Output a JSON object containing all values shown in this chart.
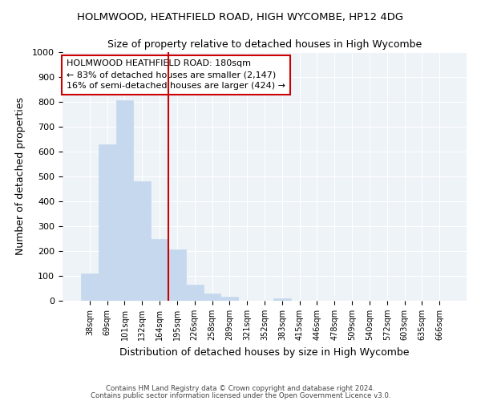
{
  "title1": "HOLMWOOD, HEATHFIELD ROAD, HIGH WYCOMBE, HP12 4DG",
  "title2": "Size of property relative to detached houses in High Wycombe",
  "xlabel": "Distribution of detached houses by size in High Wycombe",
  "ylabel": "Number of detached properties",
  "categories": [
    "38sqm",
    "69sqm",
    "101sqm",
    "132sqm",
    "164sqm",
    "195sqm",
    "226sqm",
    "258sqm",
    "289sqm",
    "321sqm",
    "352sqm",
    "383sqm",
    "415sqm",
    "446sqm",
    "478sqm",
    "509sqm",
    "540sqm",
    "572sqm",
    "603sqm",
    "635sqm",
    "666sqm"
  ],
  "values": [
    110,
    630,
    805,
    480,
    250,
    205,
    65,
    28,
    15,
    0,
    0,
    10,
    0,
    0,
    0,
    0,
    0,
    0,
    0,
    0,
    0
  ],
  "bar_color": "#c5d8ed",
  "bar_edge_color": "#c5d8ed",
  "vline_color": "#cc0000",
  "annotation_text": "HOLMWOOD HEATHFIELD ROAD: 180sqm\n← 83% of detached houses are smaller (2,147)\n16% of semi-detached houses are larger (424) →",
  "annotation_box_color": "#ffffff",
  "annotation_box_edge": "#cc0000",
  "ylim": [
    0,
    1000
  ],
  "yticks": [
    0,
    100,
    200,
    300,
    400,
    500,
    600,
    700,
    800,
    900,
    1000
  ],
  "footer1": "Contains HM Land Registry data © Crown copyright and database right 2024.",
  "footer2": "Contains public sector information licensed under the Open Government Licence v3.0.",
  "bg_color": "#ffffff",
  "plot_bg_color": "#eef3f8",
  "grid_color": "#ffffff"
}
